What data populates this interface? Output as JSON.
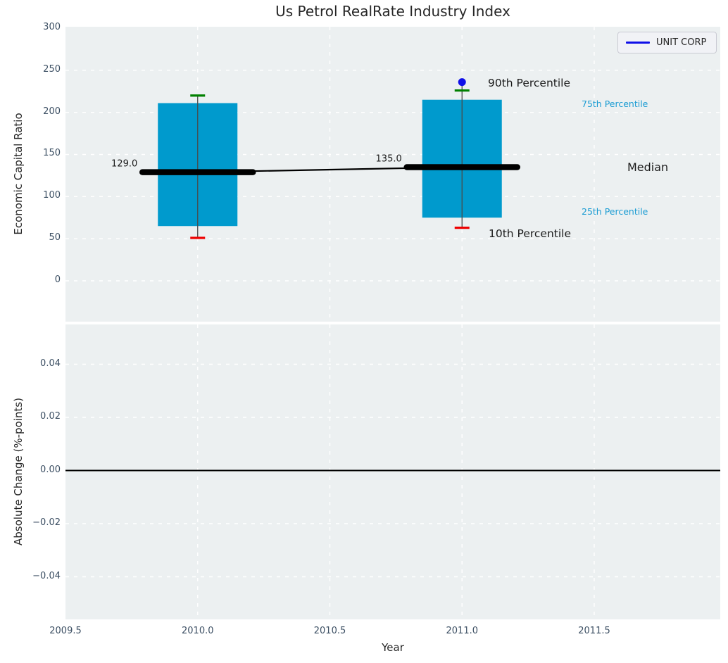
{
  "title": "Us Petrol RealRate Industry Index",
  "legend": {
    "label": "UNIT CORP"
  },
  "annotations": {
    "p90_label": "90th Percentile",
    "p10_label": "10th Percentile",
    "p75_label": "75th Percentile",
    "p25_label": "25th Percentile",
    "median_label": "Median"
  },
  "colors": {
    "plot_background": "#ecf0f1",
    "grid": "#ffffff",
    "box_fill": "#009acd",
    "p90_cap": "#008000",
    "p10_cap": "#ee0000",
    "median_line": "#000000",
    "company_dot": "#0f0fe8",
    "legend_line": "#0f0fe8",
    "percentile_label": "#1b9cd3",
    "tick_label": "#3c4f63",
    "whisker": "#4a4a4a",
    "zero_line": "#000000"
  },
  "chart_data": [
    {
      "type": "box",
      "title": "Us Petrol RealRate Industry Index",
      "ylabel": "Economic Capital Ratio",
      "ylim": [
        -48,
        302
      ],
      "yticks": [
        300,
        250,
        200,
        150,
        100,
        50,
        0
      ],
      "ytick_labels": [
        "300",
        "250",
        "200",
        "150",
        "100",
        "50",
        "0"
      ],
      "xlim": [
        2009.5,
        2011.98
      ],
      "xticks": [
        2009.5,
        2010.0,
        2010.5,
        2011.0,
        2011.5
      ],
      "xtick_labels": [
        "2009.5",
        "2010.0",
        "2010.5",
        "2011.0",
        "2011.5"
      ],
      "grid": true,
      "legend_entries": [
        "UNIT CORP"
      ],
      "legend_position": "upper right",
      "series": [
        {
          "x": 2010,
          "p10": 51,
          "p25": 65,
          "median": 129,
          "p75": 211,
          "p90": 220,
          "median_label": "129.0",
          "company_value": null
        },
        {
          "x": 2011,
          "p10": 63,
          "p25": 75,
          "median": 135,
          "p75": 215,
          "p90": 226,
          "median_label": "135.0",
          "company_value": 236
        }
      ],
      "median_trend": [
        [
          2010,
          129
        ],
        [
          2011,
          135
        ]
      ]
    },
    {
      "type": "line",
      "ylabel": "Absolute Change (%-points)",
      "xlabel": "Year",
      "ylim": [
        -0.056,
        0.055
      ],
      "yticks": [
        0.04,
        0.02,
        0.0,
        -0.02,
        -0.04
      ],
      "ytick_labels": [
        "0.04",
        "0.02",
        "0.00",
        "−0.02",
        "−0.04"
      ],
      "xticks": [
        2009.5,
        2010.0,
        2010.5,
        2011.0,
        2011.5
      ],
      "xtick_labels": [
        "2009.5",
        "2010.0",
        "2010.5",
        "2011.0",
        "2011.5"
      ],
      "grid": true,
      "zero_line": 0.0,
      "series": []
    }
  ]
}
